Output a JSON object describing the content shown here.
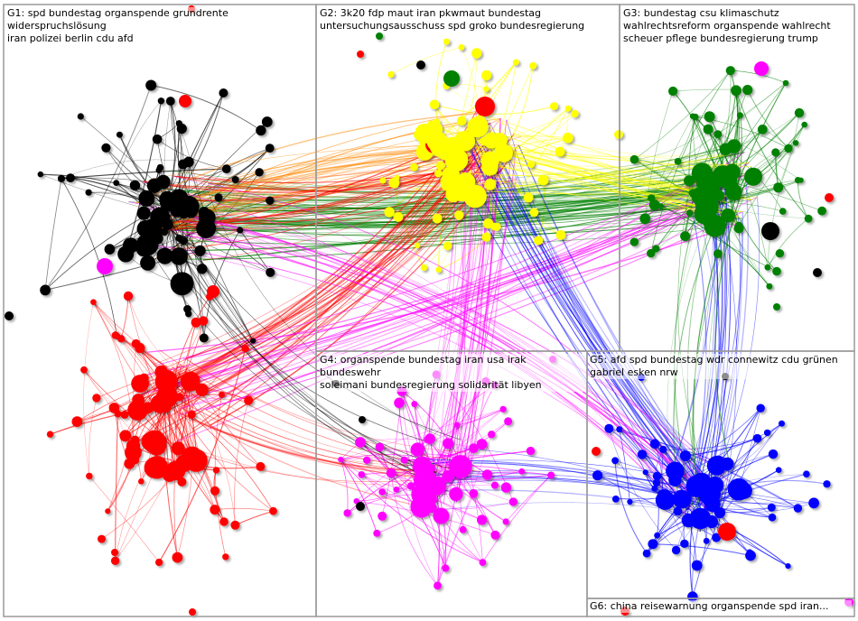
{
  "groups": [
    {
      "id": "G1",
      "color": "#000000",
      "labels": "G1: spd bundestag organspende grundrente widerspruchslösung\niran polizei berlin cdu afd"
    },
    {
      "id": "G2",
      "color": "#ffff00",
      "labels": "G2: 3k20 fdp maut iran pkwmaut bundestag\nuntersuchungsausschuss spd groko bundesregierung"
    },
    {
      "id": "G3",
      "color": "#008000",
      "labels": "G3: bundestag csu klimaschutz\nwahlrechtsreform organspende wahlrecht\nscheuer pflege bundesregierung trump"
    },
    {
      "id": "G4",
      "color": "#ff00ff",
      "labels": "G4: organspende bundestag iran usa irak bundeswehr\nsoleimani bundesregierung solidarität libyen"
    },
    {
      "id": "G5",
      "color": "#0000ff",
      "labels": "G5: afd spd bundestag wdr connewitz cdu grünen\ngabriel esken nrw"
    },
    {
      "id": "G6",
      "color": "#ff0000",
      "labels": "G6: china reisewarnung organspende spd iran..."
    }
  ],
  "colors": {
    "border": "#9a9a9a",
    "red": "#ff0000",
    "black": "#000000",
    "yellow": "#ffff00",
    "green": "#008000",
    "magenta": "#ff00ff",
    "blue": "#0000ff",
    "orange": "#ff8800"
  }
}
